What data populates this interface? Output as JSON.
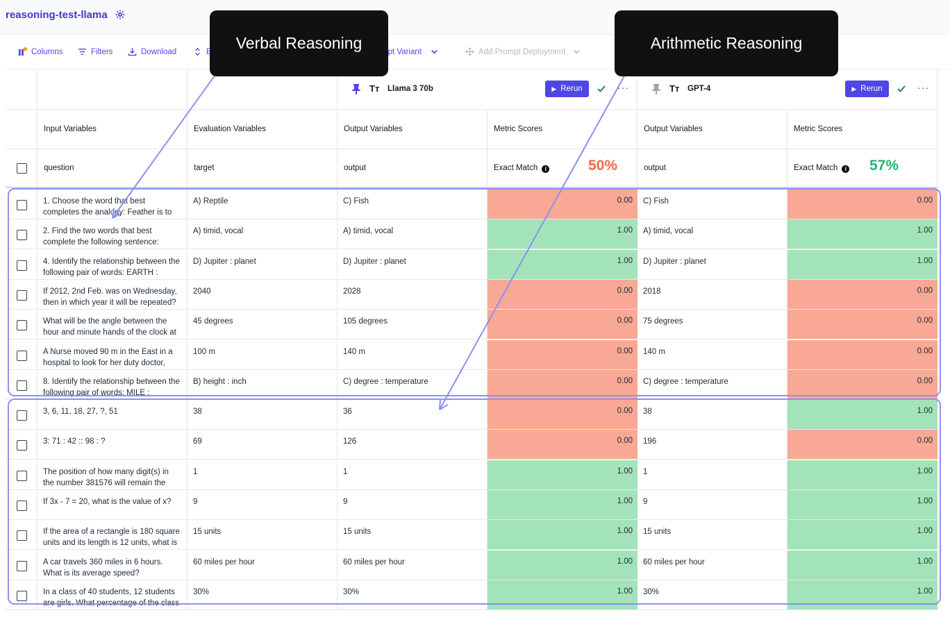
{
  "app": {
    "title": "reasoning-test-llama"
  },
  "toolbar": {
    "columns": "Columns",
    "filters": "Filters",
    "download": "Download",
    "expand": "E",
    "add_variant": "mpt Variant",
    "add_deployment": "Add Prompt Deployment"
  },
  "models": [
    {
      "name": "Llama 3 70b",
      "rerun": "Rerun",
      "score": "50%",
      "score_color": "#ef6a4c"
    },
    {
      "name": "GPT-4",
      "rerun": "Rerun",
      "score": "57%",
      "score_color": "#22b573"
    }
  ],
  "headers": {
    "input_variables": "Input Variables",
    "evaluation_variables": "Evaluation Variables",
    "output_variables": "Output Variables",
    "metric_scores": "Metric Scores"
  },
  "subheaders": {
    "question": "question",
    "target": "target",
    "output": "output",
    "exact_match": "Exact Match"
  },
  "rows": [
    {
      "question": "1. Choose the word that best completes the analogy: Feather is to",
      "target": "A) Reptile",
      "out1": "C) Fish",
      "score1": "0.00",
      "out2": "C) Fish",
      "score2": "0.00"
    },
    {
      "question": "2. Find the two words that best complete the following sentence:",
      "target": "A) timid, vocal",
      "out1": "A) timid, vocal",
      "score1": "1.00",
      "out2": "A) timid, vocal",
      "score2": "1.00"
    },
    {
      "question": "4. Identify the relationship between the following pair of words: EARTH :",
      "target": "D) Jupiter : planet",
      "out1": "D) Jupiter : planet",
      "score1": "1.00",
      "out2": "D) Jupiter : planet",
      "score2": "1.00"
    },
    {
      "question": "If 2012, 2nd Feb. was on Wednesday, then in which year it will be repeated?",
      "target": "2040",
      "out1": "2028",
      "score1": "0.00",
      "out2": "2018",
      "score2": "0.00"
    },
    {
      "question": "What will be the angle between the hour and minute hands of the clock at",
      "target": "45 degrees",
      "out1": "105 degrees",
      "score1": "0.00",
      "out2": "75 degrees",
      "score2": "0.00"
    },
    {
      "question": "A Nurse moved 90 m in the East in a hospital to look for her duty doctor,",
      "target": "100 m",
      "out1": "140 m",
      "score1": "0.00",
      "out2": "140 m",
      "score2": "0.00"
    },
    {
      "question": "8. Identify the relationship between the following pair of words: MILE :",
      "target": "B) height : inch",
      "out1": "C) degree : temperature",
      "score1": "0.00",
      "out2": "C) degree : temperature",
      "score2": "0.00"
    },
    {
      "question": "3, 6, 11, 18, 27, ?, 51",
      "target": "38",
      "out1": "36",
      "score1": "0.00",
      "out2": "38",
      "score2": "1.00"
    },
    {
      "question": "3: 71 : 42 :: 98 : ?",
      "target": "69",
      "out1": "126",
      "score1": "0.00",
      "out2": "196",
      "score2": "0.00"
    },
    {
      "question": "The position of how many digit(s) in the number 381576 will remain the",
      "target": "1",
      "out1": "1",
      "score1": "1.00",
      "out2": "1",
      "score2": "1.00"
    },
    {
      "question": "If 3x - 7 = 20, what is the value of x?",
      "target": "9",
      "out1": "9",
      "score1": "1.00",
      "out2": "9",
      "score2": "1.00"
    },
    {
      "question": "If the area of a rectangle is 180 square units and its length is 12 units, what is",
      "target": "15 units",
      "out1": "15 units",
      "score1": "1.00",
      "out2": "15 units",
      "score2": "1.00"
    },
    {
      "question": "A car travels 360 miles in 6 hours. What is its average speed?",
      "target": "60 miles per hour",
      "out1": "60 miles per hour",
      "score1": "1.00",
      "out2": "60 miles per hour",
      "score2": "1.00"
    },
    {
      "question": "In a class of 40 students, 12 students are girls. What percentage of the class",
      "target": "30%",
      "out1": "30%",
      "score1": "1.00",
      "out2": "30%",
      "score2": "1.00"
    }
  ],
  "annotations": {
    "verbal": "Verbal Reasoning",
    "arithmetic": "Arithmetic Reasoning"
  },
  "colors": {
    "accent": "#4f46e5",
    "pass": "#a3e3b9",
    "fail": "#f8a894",
    "annotation": "#8a91ee"
  }
}
